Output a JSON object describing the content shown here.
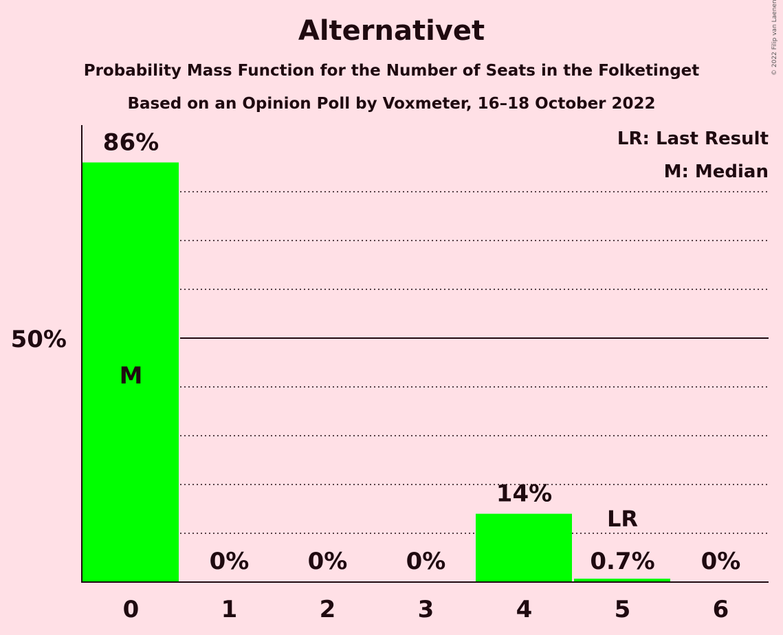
{
  "title": "Alternativet",
  "subtitle": "Probability Mass Function for the Number of Seats in the Folketinget",
  "subtitle2": "Based on an Opinion Poll by Voxmeter, 16–18 October 2022",
  "copyright": "© 2022 Filip van Laenen",
  "colors": {
    "background": "#ffe0e6",
    "bar": "#00ff00",
    "text": "#1f0a10",
    "median_label": "#ffe0e6"
  },
  "chart_data": {
    "type": "bar",
    "categories": [
      "0",
      "1",
      "2",
      "3",
      "4",
      "5",
      "6"
    ],
    "values": [
      86,
      0,
      0,
      0,
      14,
      0.7,
      0
    ],
    "value_labels": [
      "86%",
      "0%",
      "0%",
      "0%",
      "14%",
      "0.7%",
      "0%"
    ],
    "ylim": [
      0,
      93
    ],
    "y_tick_labels": [
      {
        "value": 50,
        "label": "50%"
      }
    ],
    "gridlines_dotted": [
      10,
      20,
      30,
      40,
      60,
      70,
      80
    ],
    "gridline_solid": 50,
    "markers": [
      {
        "category": "0",
        "label": "M"
      },
      {
        "category": "5",
        "label": "LR"
      }
    ],
    "legend": [
      "LR: Last Result",
      "M: Median"
    ],
    "legend_position": "top-right"
  }
}
